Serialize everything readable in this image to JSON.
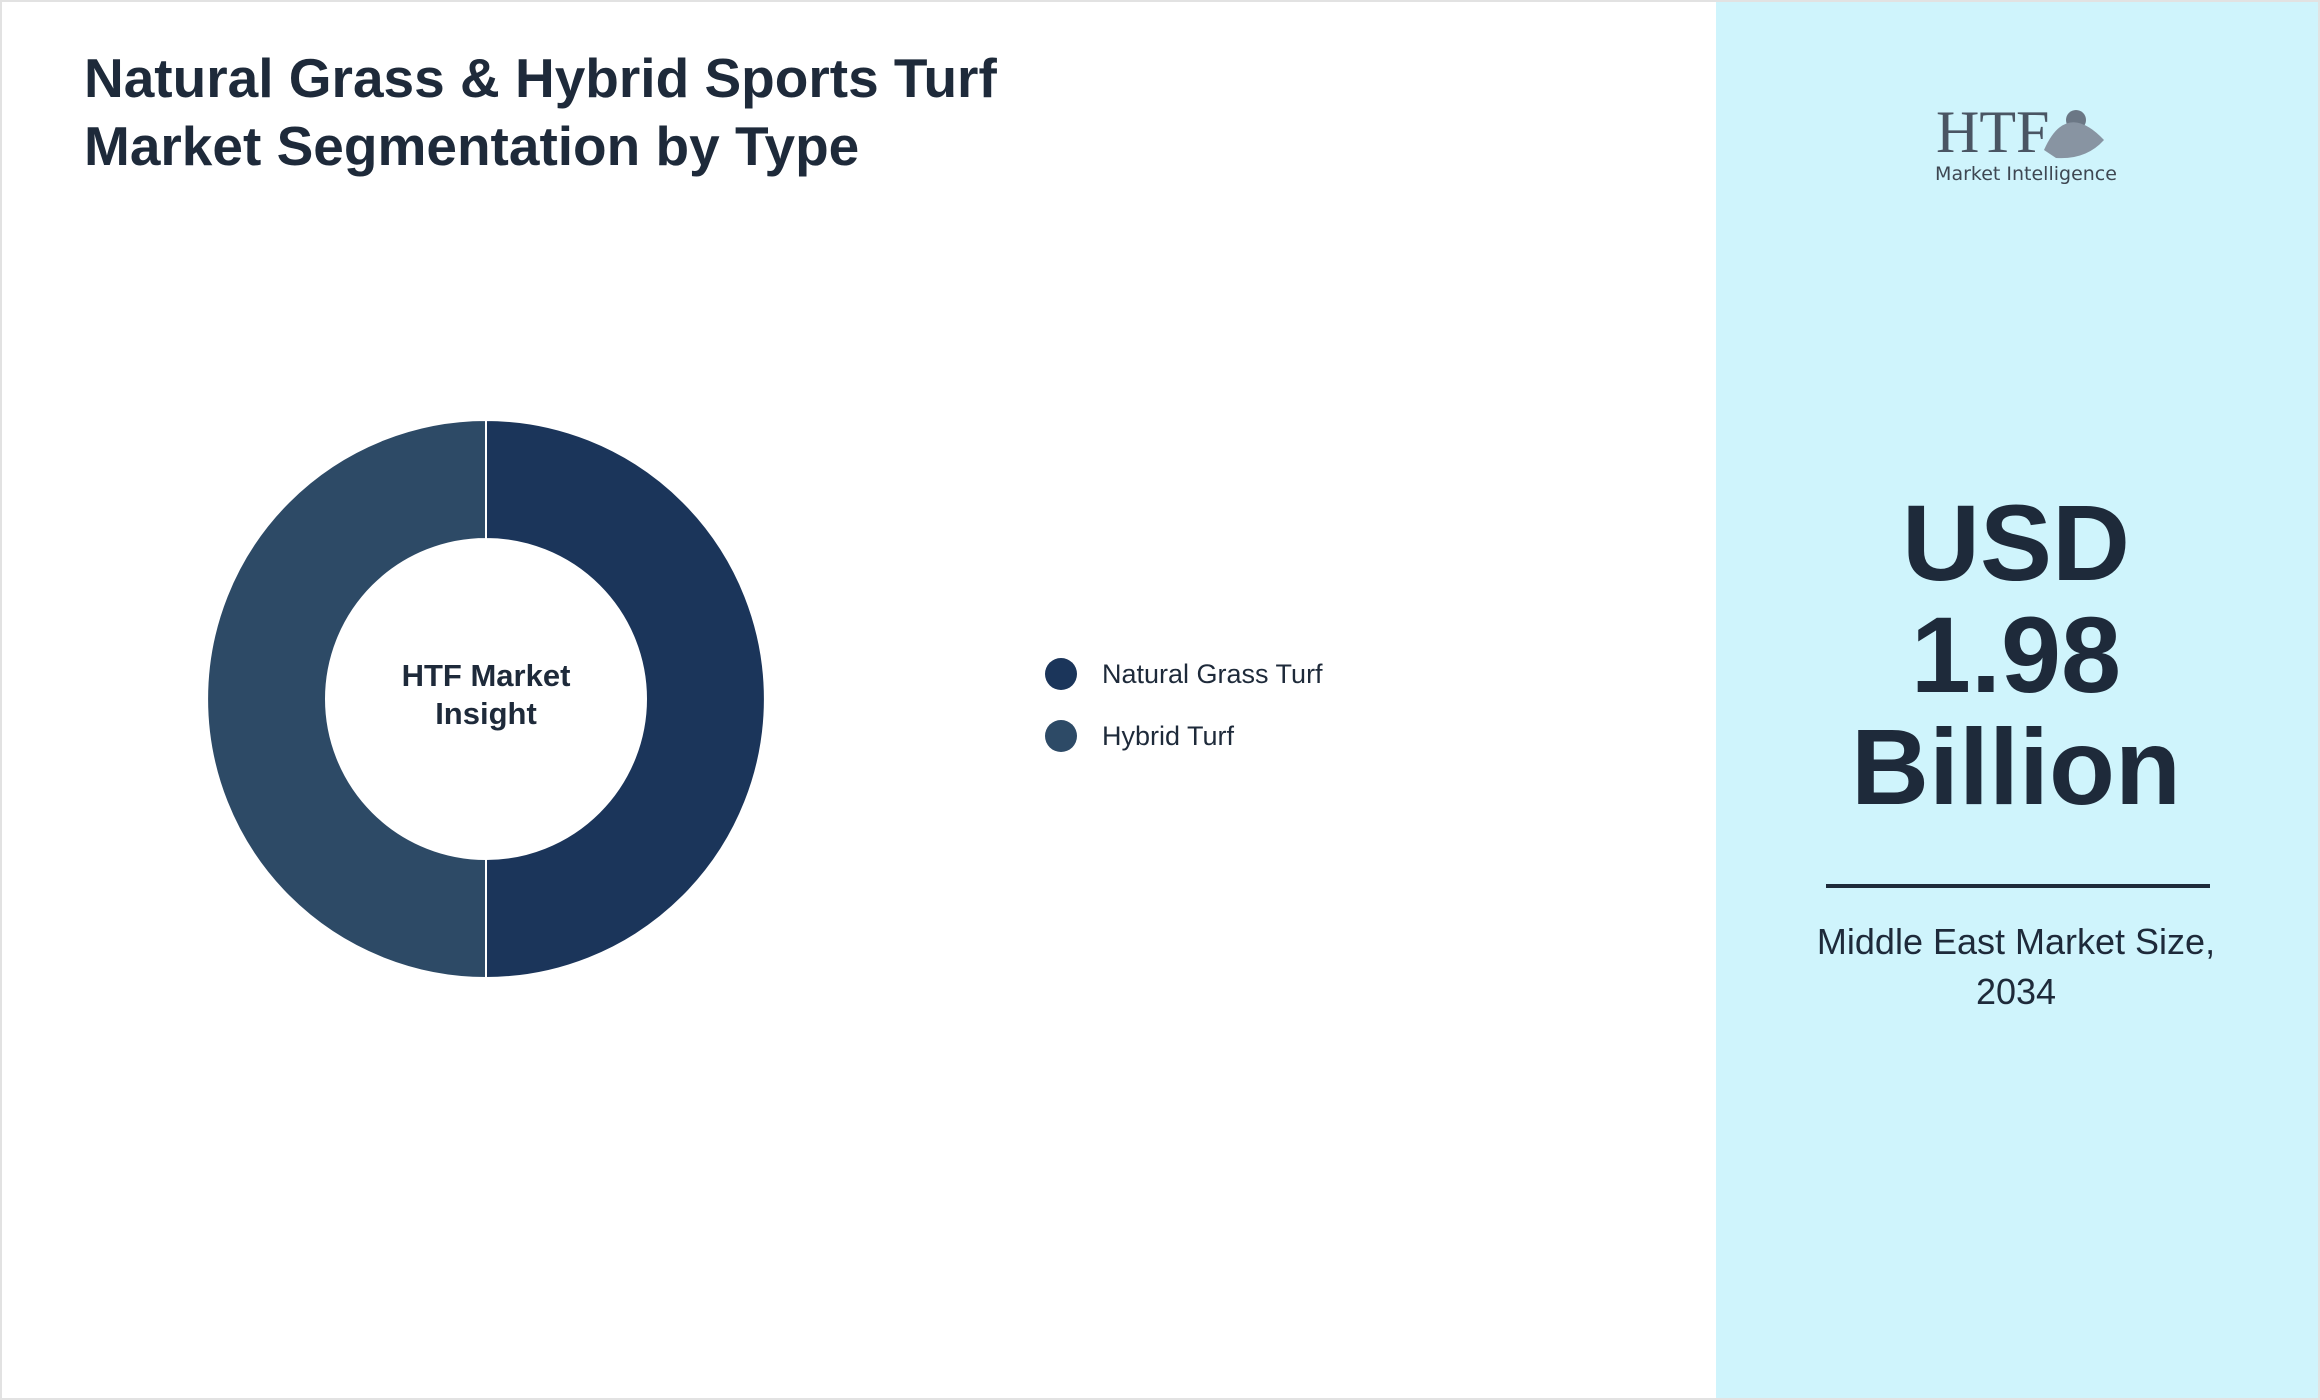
{
  "chart_data": {
    "type": "donut",
    "title": "Natural Grass & Hybrid Sports Turf Market Segmentation by Type",
    "center_label": "HTF Market Insight",
    "categories": [
      "Natural Grass Turf",
      "Hybrid Turf"
    ],
    "values": [
      50,
      50
    ],
    "colors": [
      "#1b355a",
      "#2d4a66"
    ]
  },
  "panel": {
    "logo": {
      "mark": "HTF",
      "tagline": "Market Intelligence"
    },
    "headline": "USD 1.98 Billion",
    "caption": "Middle East Market Size, 2034"
  }
}
